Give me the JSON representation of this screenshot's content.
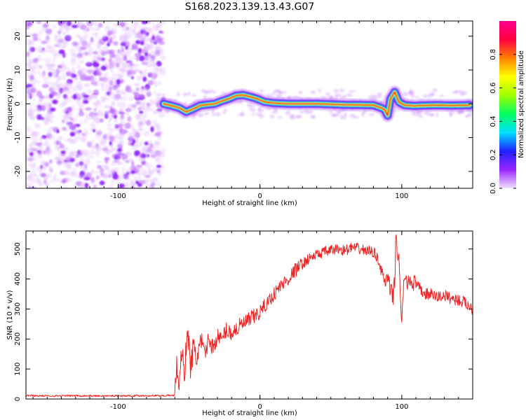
{
  "title": "S168.2023.139.13.43.G07",
  "chart_data": [
    {
      "type": "heatmap",
      "xlabel": "Height of straight line (km)",
      "ylabel": "Frequency (Hz)",
      "xlim": [
        -165,
        150
      ],
      "ylim": [
        -25,
        24.5
      ],
      "x_ticks": [
        -100,
        0,
        100
      ],
      "y_ticks": [
        -20,
        -10,
        0,
        10,
        20
      ],
      "colorbar": {
        "label": "Normalized spectral amplitude",
        "range": [
          0,
          1
        ],
        "ticks": [
          "0.0",
          "0.2",
          "0.4",
          "0.6",
          "0.8"
        ],
        "colors": [
          "#f0e0ff",
          "#9a28ff",
          "#2020ff",
          "#00e0ff",
          "#00ff60",
          "#a0ff00",
          "#ffff00",
          "#ff8000",
          "#ff0040",
          "#ff0090"
        ]
      },
      "noise_region": {
        "x_range": [
          -165,
          -68
        ],
        "y_range": [
          -25,
          24.5
        ]
      },
      "ridge": {
        "x": [
          -68,
          -62,
          -57,
          -52,
          -47,
          -42,
          -37,
          -32,
          -27,
          -22,
          -17,
          -12,
          -7,
          -2,
          3,
          10,
          20,
          40,
          60,
          80,
          86,
          88,
          90,
          92,
          95,
          98,
          102,
          108,
          115,
          125,
          135,
          148
        ],
        "y": [
          0,
          -0.6,
          -1.2,
          -2.4,
          -1.5,
          -0.5,
          -0.2,
          0,
          0.8,
          1.5,
          2.4,
          2.6,
          2.1,
          1.5,
          0.6,
          0.2,
          0,
          0,
          -0.3,
          -0.4,
          -1.3,
          -1.8,
          -3.5,
          1.5,
          3.5,
          0.5,
          -0.4,
          -0.6,
          -0.5,
          -0.4,
          -0.5,
          -0.4
        ]
      }
    },
    {
      "type": "line",
      "xlabel": "Height of straight line (km)",
      "ylabel": "SNR (10 * v/v)",
      "xlim": [
        -165,
        150
      ],
      "ylim": [
        0,
        560
      ],
      "x_ticks": [
        -100,
        0,
        100
      ],
      "y_ticks": [
        0,
        100,
        200,
        300,
        400,
        500
      ],
      "line_color": "#ee2222",
      "series": [
        {
          "x": [
            -165,
            -150,
            -130,
            -110,
            -90,
            -70,
            -60,
            -59,
            -57,
            -55,
            -53,
            -51,
            -49,
            -47,
            -45,
            -42,
            -39,
            -36,
            -33,
            -30,
            -27,
            -24,
            -20,
            -15,
            -10,
            -5,
            0,
            5,
            10,
            15,
            20,
            25,
            30,
            35,
            40,
            45,
            50,
            55,
            60,
            65,
            70,
            75,
            80,
            83,
            86,
            88,
            90,
            92,
            94,
            95,
            96,
            97,
            98,
            99,
            100,
            101,
            102,
            103,
            105,
            108,
            112,
            116,
            120,
            125,
            130,
            135,
            140,
            145,
            150
          ],
          "y": [
            12,
            10,
            11,
            10,
            11,
            11,
            12,
            110,
            60,
            150,
            90,
            250,
            100,
            170,
            130,
            190,
            150,
            200,
            170,
            210,
            195,
            230,
            220,
            240,
            255,
            270,
            290,
            320,
            350,
            380,
            400,
            430,
            450,
            470,
            480,
            490,
            495,
            500,
            495,
            505,
            500,
            495,
            490,
            470,
            420,
            390,
            400,
            360,
            340,
            400,
            560,
            470,
            500,
            320,
            240,
            360,
            420,
            380,
            400,
            390,
            370,
            350,
            350,
            340,
            345,
            335,
            330,
            320,
            300
          ]
        }
      ]
    }
  ]
}
